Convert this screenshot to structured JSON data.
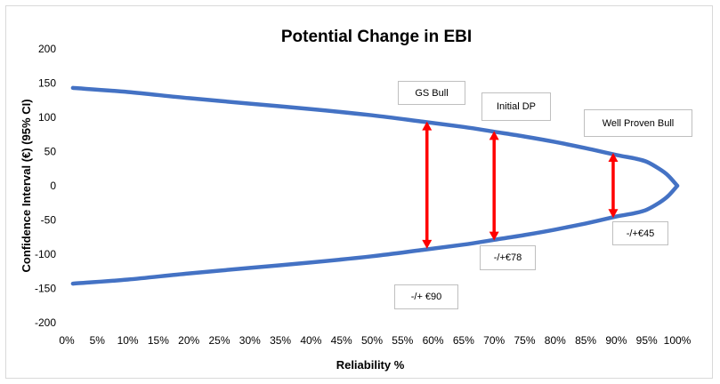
{
  "chart_data": {
    "type": "line",
    "title": "Potential Change in EBI",
    "xlabel": "Reliability %",
    "ylabel": "Confidence Interval (€) (95% CI)",
    "xlim": [
      0,
      100
    ],
    "ylim": [
      -200,
      200
    ],
    "x_ticks": [
      "0%",
      "5%",
      "10%",
      "15%",
      "20%",
      "25%",
      "30%",
      "35%",
      "40%",
      "45%",
      "50%",
      "55%",
      "60%",
      "65%",
      "70%",
      "75%",
      "80%",
      "85%",
      "90%",
      "95%",
      "100%"
    ],
    "y_ticks": [
      "200",
      "150",
      "100",
      "50",
      "0",
      "-50",
      "-100",
      "-150",
      "-200"
    ],
    "grid": false,
    "legend": "none",
    "line_color": "#4472c4",
    "arrow_color": "#ff0000",
    "series": [
      {
        "x": [
          1,
          10,
          20,
          30,
          40,
          50,
          58,
          65,
          70,
          75,
          80,
          85,
          90,
          93,
          95,
          97,
          98.5,
          100
        ],
        "y": [
          143,
          137,
          128,
          120,
          112,
          103,
          94,
          86,
          79,
          72,
          64,
          55,
          45,
          40,
          35,
          25,
          15,
          0
        ]
      },
      {
        "x": [
          1,
          10,
          20,
          30,
          40,
          50,
          58,
          65,
          70,
          75,
          80,
          85,
          90,
          93,
          95,
          97,
          98.5,
          100
        ],
        "y": [
          -143,
          -137,
          -128,
          -120,
          -112,
          -103,
          -94,
          -86,
          -79,
          -72,
          -64,
          -55,
          -45,
          -40,
          -35,
          -25,
          -15,
          0
        ]
      }
    ],
    "arrows": [
      {
        "x": 59,
        "y_top": 94,
        "y_bottom": -92
      },
      {
        "x": 70,
        "y_top": 80,
        "y_bottom": -80
      },
      {
        "x": 89.5,
        "y_top": 48,
        "y_bottom": -47
      }
    ],
    "annotations": [
      {
        "text": "GS Bull"
      },
      {
        "text": "Initial DP"
      },
      {
        "text": "Well Proven Bull"
      },
      {
        "text": "-/+ €90"
      },
      {
        "text": "-/+€78"
      },
      {
        "text": "-/+€45"
      }
    ]
  }
}
